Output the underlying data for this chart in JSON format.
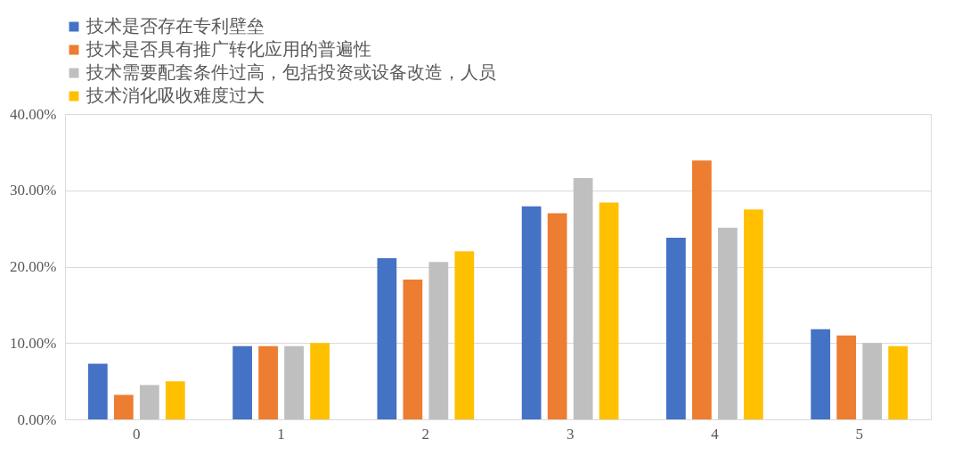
{
  "chart_data": {
    "type": "bar",
    "categories": [
      "0",
      "1",
      "2",
      "3",
      "4",
      "5"
    ],
    "series": [
      {
        "name": "技术是否存在专利壁垒",
        "color": "#4472c4",
        "values": [
          7.3,
          9.6,
          21.1,
          27.9,
          23.8,
          11.8
        ]
      },
      {
        "name": "技术是否具有推广转化应用的普遍性",
        "color": "#ed7d31",
        "values": [
          3.2,
          9.6,
          18.3,
          27.0,
          33.9,
          11.0
        ]
      },
      {
        "name": "技术需要配套条件过高，包括投资或设备改造，人员",
        "color": "#bfbfbf",
        "values": [
          4.5,
          9.6,
          20.6,
          31.6,
          25.1,
          10.0
        ]
      },
      {
        "name": "技术消化吸收难度过大",
        "color": "#ffc000",
        "values": [
          5.0,
          10.0,
          22.0,
          28.4,
          27.5,
          9.6
        ]
      }
    ],
    "ylim": [
      0,
      40
    ],
    "yticks": [
      {
        "value": 0,
        "label": "0.00%"
      },
      {
        "value": 10,
        "label": "10.00%"
      },
      {
        "value": 20,
        "label": "20.00%"
      },
      {
        "value": 30,
        "label": "30.00%"
      },
      {
        "value": 40,
        "label": "40.00%"
      }
    ],
    "grid": "y",
    "legend": "top"
  }
}
